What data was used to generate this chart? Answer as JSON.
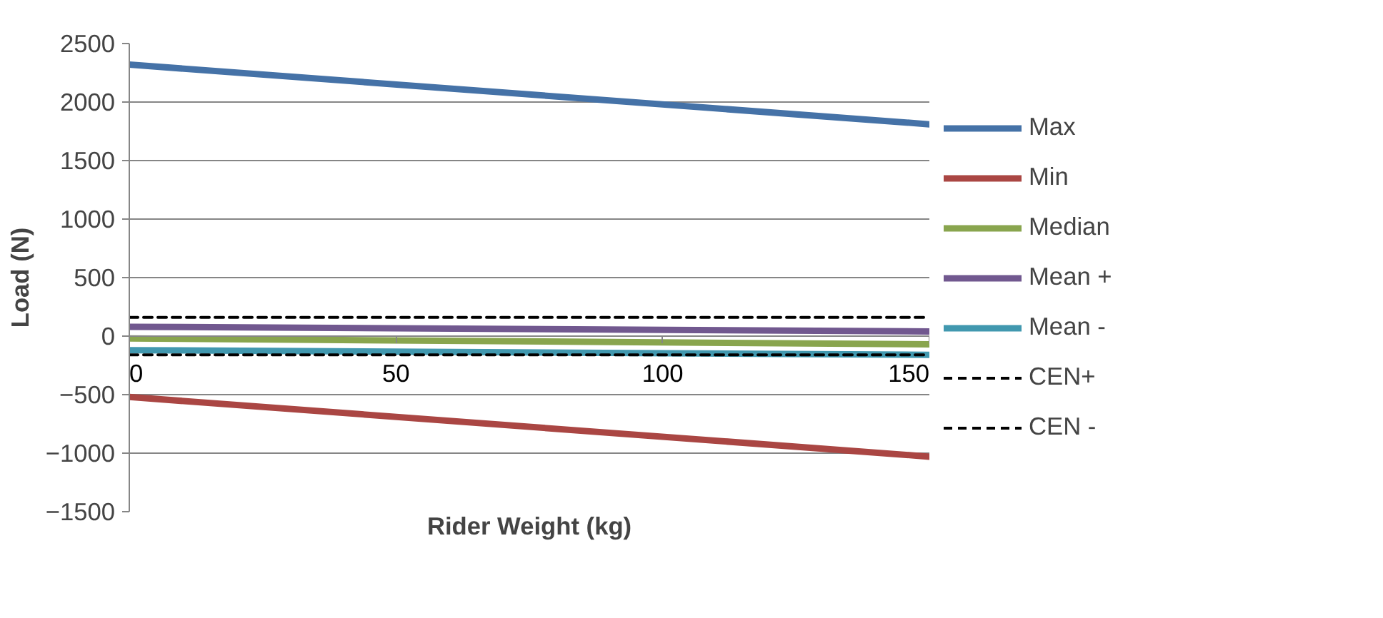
{
  "chart_data": {
    "type": "line",
    "xlabel": "Rider Weight (kg)",
    "ylabel": "Load (N)",
    "x": [
      0,
      150
    ],
    "xlim": [
      0,
      150
    ],
    "xticks": [
      0,
      50,
      100,
      150
    ],
    "ylim": [
      -1500,
      2500
    ],
    "yticks": [
      -1500,
      -1000,
      -500,
      0,
      500,
      1000,
      1500,
      2000,
      2500
    ],
    "grid": "y",
    "legend": "right",
    "line_style": "solid",
    "series": [
      {
        "name": "Max",
        "color": "#4572a7",
        "values": [
          2320,
          1810
        ]
      },
      {
        "name": "Min",
        "color": "#aa4643",
        "values": [
          -520,
          -1030
        ]
      },
      {
        "name": "Median",
        "color": "#89a54e",
        "values": [
          -20,
          -70
        ]
      },
      {
        "name": "Mean +",
        "color": "#71588f",
        "values": [
          80,
          40
        ]
      },
      {
        "name": "Mean -",
        "color": "#4198af",
        "values": [
          -120,
          -160
        ]
      },
      {
        "name": "CEN+",
        "color": "#000000",
        "values": [
          160,
          160
        ],
        "line_style": "dashed"
      },
      {
        "name": "CEN -",
        "color": "#000000",
        "values": [
          -160,
          -160
        ],
        "line_style": "dashed"
      }
    ]
  }
}
